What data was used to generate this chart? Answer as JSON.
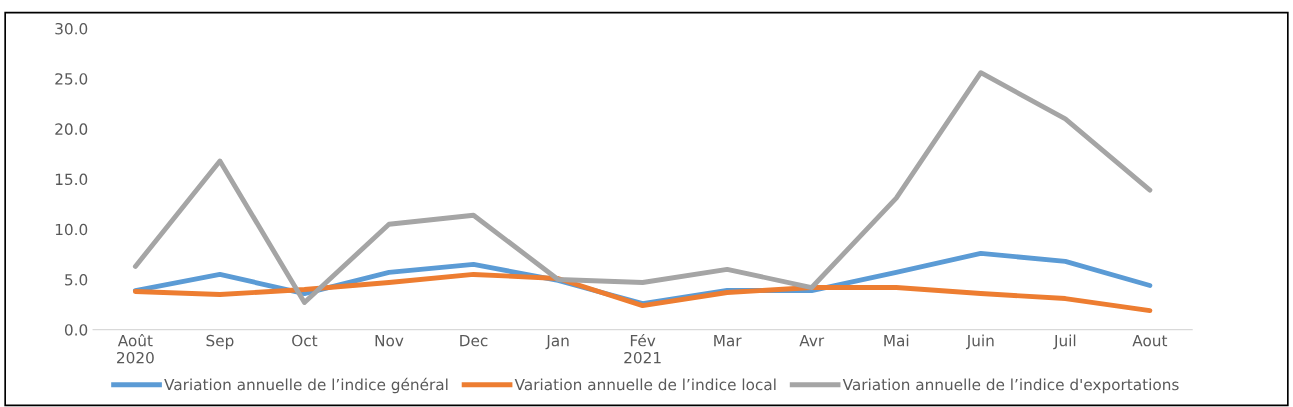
{
  "chart_data": {
    "type": "line",
    "categories": [
      "Août\n2020",
      "Sep",
      "Oct",
      "Nov",
      "Dec",
      "Jan",
      "Fév\n2021",
      "Mar",
      "Avr",
      "Mai",
      "Juin",
      "Juil",
      "Aout"
    ],
    "series": [
      {
        "name": "Variation annuelle de l’indice général",
        "color": "#5b9bd5",
        "values": [
          3.9,
          5.5,
          3.6,
          5.7,
          6.5,
          4.9,
          2.6,
          3.9,
          3.9,
          5.7,
          7.6,
          6.8,
          4.4
        ]
      },
      {
        "name": "Variation annuelle de l’indice local",
        "color": "#ed7d31",
        "values": [
          3.8,
          3.5,
          4.0,
          4.7,
          5.5,
          5.1,
          2.4,
          3.7,
          4.2,
          4.2,
          3.6,
          3.1,
          1.9
        ]
      },
      {
        "name": "Variation annuelle de l’indice d'exportations",
        "color": "#a5a5a5",
        "values": [
          6.3,
          16.8,
          2.7,
          10.5,
          11.4,
          5.0,
          4.7,
          6.0,
          4.2,
          13.1,
          25.6,
          21.0,
          13.9
        ]
      }
    ],
    "ylim": [
      0,
      30
    ],
    "yticks": [
      {
        "value": 0,
        "label": "0.0"
      },
      {
        "value": 5,
        "label": "5.0"
      },
      {
        "value": 10,
        "label": "10.0"
      },
      {
        "value": 15,
        "label": "15.0"
      },
      {
        "value": 20,
        "label": "20.0"
      },
      {
        "value": 25,
        "label": "25.0"
      },
      {
        "value": 30,
        "label": "30.0"
      }
    ],
    "grid": false,
    "legend": "bottom",
    "marker": "none",
    "line_style": "solid"
  }
}
